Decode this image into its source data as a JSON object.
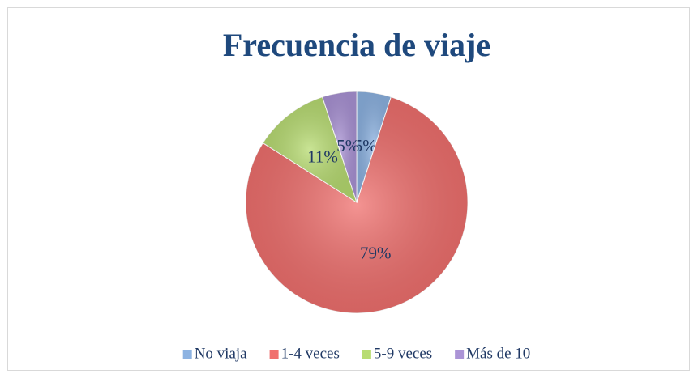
{
  "chart_data": {
    "type": "pie",
    "title": "Frecuencia de viaje",
    "categories": [
      "No viaja",
      "1-4 veces",
      "5-9 veces",
      "Más de 10"
    ],
    "values": [
      5,
      79,
      11,
      5
    ],
    "value_labels": [
      "5%",
      "79%",
      "11%",
      "5%"
    ],
    "colors": [
      "#8db3e2",
      "#f0706e",
      "#b8dc72",
      "#ab94d6"
    ],
    "legend": "bottom"
  }
}
